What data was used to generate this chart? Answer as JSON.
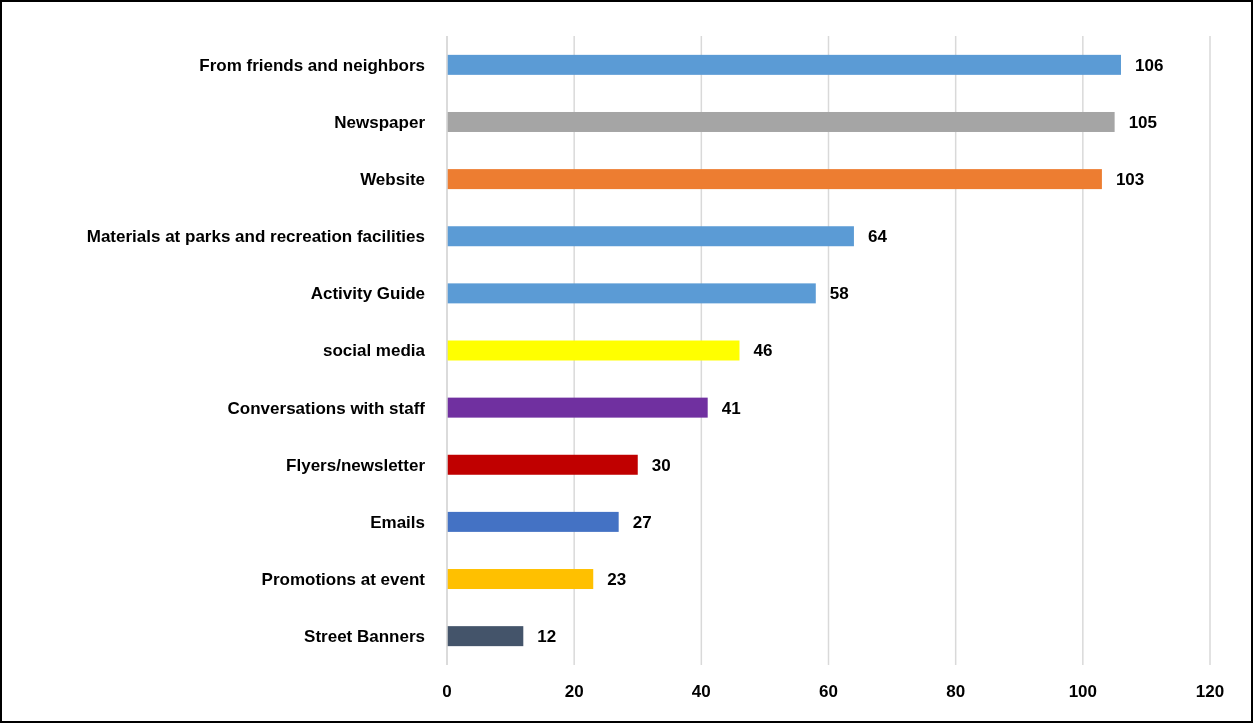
{
  "chart_data": {
    "type": "bar",
    "orientation": "horizontal",
    "categories": [
      "From friends and neighbors",
      "Newspaper",
      "Website",
      "Materials at parks and recreation facilities",
      "Activity Guide",
      "social media",
      "Conversations with staff",
      "Flyers/newsletter",
      "Emails",
      "Promotions at event",
      "Street Banners"
    ],
    "values": [
      106,
      105,
      103,
      64,
      58,
      46,
      41,
      30,
      27,
      23,
      12
    ],
    "colors": [
      "#5b9bd5",
      "#a5a5a5",
      "#ed7d31",
      "#5b9bd5",
      "#5b9bd5",
      "#ffff00",
      "#7030a0",
      "#c00000",
      "#4472c4",
      "#ffc000",
      "#44546a"
    ],
    "xlim": [
      0,
      120
    ],
    "xticks": [
      0,
      20,
      40,
      60,
      80,
      100,
      120
    ],
    "grid": "x",
    "data_labels": true
  }
}
